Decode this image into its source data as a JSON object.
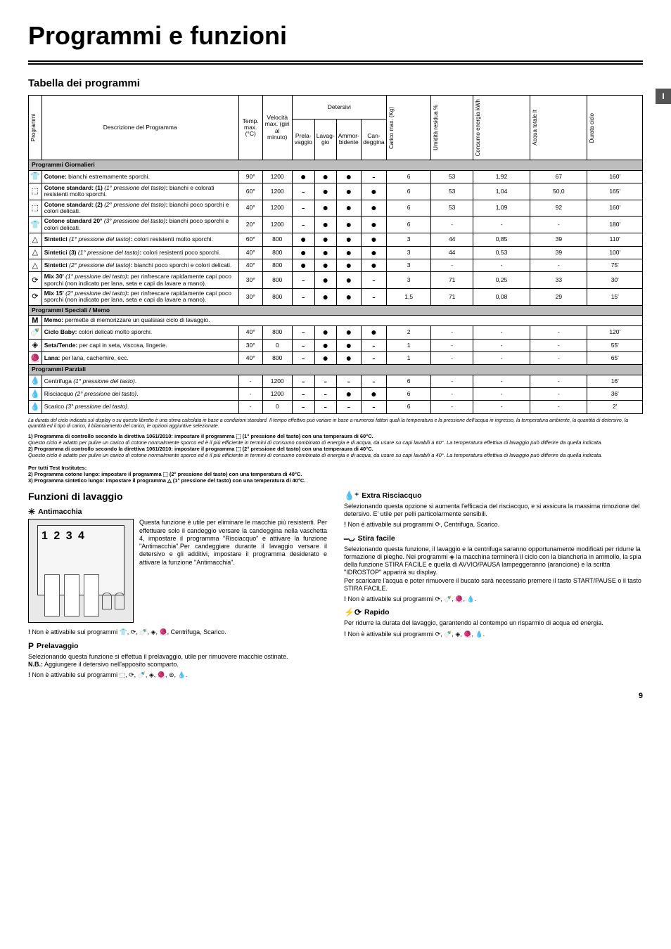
{
  "page": {
    "title": "Programmi e funzioni",
    "number": "9",
    "lang_tab": "I"
  },
  "table": {
    "heading": "Tabella dei programmi",
    "headers": {
      "programmi": "Programmi",
      "descrizione": "Descrizione del Programma",
      "temp": "Temp. max. (°C)",
      "velocita": "Velocità max. (giri al minuto)",
      "detersivi": "Detersivi",
      "prelavaggio": "Prela-vaggio",
      "lavaggio": "Lavag-gio",
      "ammorbidente": "Ammor-bidente",
      "candeggina": "Can-deggina",
      "carico": "Carico max. (Kg)",
      "umidita": "Umidità residua %",
      "consumo": "Consumo energia kWh",
      "acqua": "Acqua totale lt",
      "durata": "Durata ciclo"
    },
    "sections": {
      "giornalieri": "Programmi Giornalieri",
      "speciali": "Programmi Speciali / Memo",
      "parziali": "Programmi Parziali"
    },
    "rows": [
      {
        "icon": "👕",
        "desc": "<b>Cotone:</b> bianchi estremamente sporchi.",
        "temp": "90°",
        "vel": "1200",
        "pre": "●",
        "lav": "●",
        "amm": "●",
        "can": "-",
        "car": "6",
        "umi": "53",
        "con": "1,92",
        "acq": "67",
        "dur": "160'"
      },
      {
        "icon": "⬚",
        "desc": "<b>Cotone standard: (1)</b> <i>(1° pressione del tasto)</i><b>:</b> bianchi e colorati resistenti molto sporchi.",
        "temp": "60°",
        "vel": "1200",
        "pre": "-",
        "lav": "●",
        "amm": "●",
        "can": "●",
        "car": "6",
        "umi": "53",
        "con": "1,04",
        "acq": "50,0",
        "dur": "165'"
      },
      {
        "icon": "⬚",
        "desc": "<b>Cotone standard: (2)</b> <i>(2° pressione del tasto)</i><b>:</b> bianchi poco sporchi e colori delicati.",
        "temp": "40°",
        "vel": "1200",
        "pre": "-",
        "lav": "●",
        "amm": "●",
        "can": "●",
        "car": "6",
        "umi": "53",
        "con": "1,09",
        "acq": "92",
        "dur": "160'"
      },
      {
        "icon": "👕",
        "desc": "<b>Cotone standard 20°</b> <i>(3° pressione del tasto)</i><b>:</b> bianchi poco sporchi e colori delicati.",
        "temp": "20°",
        "vel": "1200",
        "pre": "-",
        "lav": "●",
        "amm": "●",
        "can": "●",
        "car": "6",
        "umi": "-",
        "con": "-",
        "acq": "-",
        "dur": "180'"
      },
      {
        "icon": "△",
        "desc": "<b>Sintetici</b> <i>(1° pressione del tasto)</i><b>:</b> colori resistenti molto sporchi.",
        "temp": "60°",
        "vel": "800",
        "pre": "●",
        "lav": "●",
        "amm": "●",
        "can": "●",
        "car": "3",
        "umi": "44",
        "con": "0,85",
        "acq": "39",
        "dur": "110'"
      },
      {
        "icon": "△",
        "desc": "<b>Sintetici (3)</b> <i>(1° pressione del tasto)</i><b>:</b> colori resistenti poco sporchi.",
        "temp": "40°",
        "vel": "800",
        "pre": "●",
        "lav": "●",
        "amm": "●",
        "can": "●",
        "car": "3",
        "umi": "44",
        "con": "0,53",
        "acq": "39",
        "dur": "100'"
      },
      {
        "icon": "△",
        "desc": "<b>Sintetici</b> <i>(2° pressione del tasto)</i><b>:</b> bianchi poco sporchi e colori delicati.",
        "temp": "40°",
        "vel": "800",
        "pre": "●",
        "lav": "●",
        "amm": "●",
        "can": "●",
        "car": "3",
        "umi": "-",
        "con": "-",
        "acq": "-",
        "dur": "75'"
      },
      {
        "icon": "⟳",
        "desc": "<b>Mix 30'</b> <i>(1° pressione del tasto)</i><b>:</b> per rinfrescare rapidamente capi poco sporchi (non indicato per lana, seta e capi da lavare a mano).",
        "temp": "30°",
        "vel": "800",
        "pre": "-",
        "lav": "●",
        "amm": "●",
        "can": "-",
        "car": "3",
        "umi": "71",
        "con": "0,25",
        "acq": "33",
        "dur": "30'"
      },
      {
        "icon": "⟳",
        "desc": "<b>Mix 15'</b> <i>(2° pressione del tasto)</i><b>:</b> per rinfrescare rapidamente capi poco sporchi (non indicato per lana, seta e capi da lavare a mano).",
        "temp": "30°",
        "vel": "800",
        "pre": "-",
        "lav": "●",
        "amm": "●",
        "can": "-",
        "car": "1,5",
        "umi": "71",
        "con": "0,08",
        "acq": "29",
        "dur": "15'"
      }
    ],
    "memo": {
      "icon": "M",
      "desc": "<b>Memo:</b> permette di memorizzare un qualsiasi ciclo di lavaggio."
    },
    "speciali_rows": [
      {
        "icon": "🍼",
        "desc": "<b>Ciclo Baby:</b> colori delicati molto sporchi.",
        "temp": "40°",
        "vel": "800",
        "pre": "-",
        "lav": "●",
        "amm": "●",
        "can": "●",
        "car": "2",
        "umi": "-",
        "con": "-",
        "acq": "-",
        "dur": "120'"
      },
      {
        "icon": "◈",
        "desc": "<b>Seta/Tende:</b> per capi in seta, viscosa, lingerie.",
        "temp": "30°",
        "vel": "0",
        "pre": "-",
        "lav": "●",
        "amm": "●",
        "can": "-",
        "car": "1",
        "umi": "-",
        "con": "-",
        "acq": "-",
        "dur": "55'"
      },
      {
        "icon": "🧶",
        "desc": "<b>Lana:</b> per lana, cachemire, ecc.",
        "temp": "40°",
        "vel": "800",
        "pre": "-",
        "lav": "●",
        "amm": "●",
        "can": "-",
        "car": "1",
        "umi": "-",
        "con": "-",
        "acq": "-",
        "dur": "65'"
      }
    ],
    "parziali_rows": [
      {
        "icon": "💧",
        "desc": "Centrifuga <i>(1° pressione del tasto)</i>.",
        "temp": "-",
        "vel": "1200",
        "pre": "-",
        "lav": "-",
        "amm": "-",
        "can": "-",
        "car": "6",
        "umi": "-",
        "con": "-",
        "acq": "-",
        "dur": "16'"
      },
      {
        "icon": "💧",
        "desc": "Risciacquo <i>(2° pressione del tasto)</i>.",
        "temp": "-",
        "vel": "1200",
        "pre": "-",
        "lav": "-",
        "amm": "●",
        "can": "●",
        "car": "6",
        "umi": "-",
        "con": "-",
        "acq": "-",
        "dur": "36'"
      },
      {
        "icon": "💧",
        "desc": "Scarico <i>(3° pressione del tasto)</i>.",
        "temp": "-",
        "vel": "0",
        "pre": "-",
        "lav": "-",
        "amm": "-",
        "can": "-",
        "car": "6",
        "umi": "-",
        "con": "-",
        "acq": "-",
        "dur": "2'"
      }
    ],
    "footnote": "La durata del ciclo indicata sul display o su questo libretto è una stima calcolata in base a condizioni standard. Il tempo effettivo può variare in base a numerosi fattori quali la temperatura e la pressione dell'acqua in ingresso, la temperatura ambiente, la quantità di detersivo, la quantità ed il tipo di carico, il bilanciamento del carico, le opzioni aggiuntive selezionate.",
    "notes": "1) Programma di controllo secondo la direttiva 1061/2010: impostare il programma ⬚ (1° pressione del tasto) con una temperaura di 60°C.\nQuesto ciclo è adatto per pulire un carico di cotone normalmente sporco ed è il più efficiente in termini di consumo combinato di energia e di acqua, da usare su capi lavabili a 60°. La temperatura effettiva di lavaggio può differire da quella indicata.\n2) Programma di controllo secondo la direttiva 1061/2010: impostare il programma ⬚ (2° pressione del tasto) con una temperaura di 40°C.\nQuesto ciclo è adatto per pulire un carico di cotone normalmente sporco ed è il più efficiente in termini di consumo combinato di energia e di acqua, da usare su capi lavabili a 40°. La temperatura effettiva di lavaggio può differire da quella indicata.\n\nPer tutti Test Institutes:\n2) Programma cotone lungo: impostare il programma ⬚ (2° pressione del tasto) con una temperatura di 40°C.\n3) Programma sintetico lungo: impostare il programma △ (1° pressione del tasto) con una temperatura di 40°C."
  },
  "functions": {
    "heading": "Funzioni di lavaggio",
    "antimacchia": {
      "title": "Antimacchia",
      "drawer_label": "1 2 3 4",
      "body": "Questa funzione è utile per eliminare le macchie più resistenti. Per effettuare solo il candeggio versare la candeggina nella vaschetta 4, impostare il programma \"Risciacquo\" e attivare la funzione \"Antimacchia\".Per candeggiare durante il lavaggio versare il detersivo e gli additivi, impostare il programma desiderato e attivare la funzione \"Antimacchia\".",
      "warn": "Non è attivabile sui programmi 👕, ⟳, 🍼, ◈, 🧶, Centrifuga, Scarico."
    },
    "prelavaggio": {
      "icon": "P",
      "title": "Prelavaggio",
      "body": "Selezionando questa funzione si effettua il prelavaggio, utile per rimuovere macchie ostinate.",
      "nb_label": "N.B.:",
      "nb": "Aggiungere il detersivo nell'apposito scomparto.",
      "warn": "Non è attivabile sui programmi ⬚, ⟳, 🍼, ◈, 🧶, ⊚, 💧."
    },
    "extra": {
      "title": "Extra Risciacquo",
      "body": "Selezionando questa opzione si aumenta l'efficacia del risciacquo, e si assicura la massima rimozione del detersivo. E' utile per pelli particolarmente sensibili.",
      "warn": "Non è attivabile sui programmi ⟳, Centrifuga, Scarico."
    },
    "stira": {
      "title": "Stira facile",
      "body": "Selezionando questa funzione, il lavaggio e la centrifuga saranno opportunamente modificati per ridurre la formazione di pieghe. Nei programmi ◈ la macchina terminerà il ciclo con la biancheria in ammollo, la spia della funzione STIRA FACILE e quella di AVVIO/PAUSA lampeggeranno (arancione) e la scritta \"IDROSTOP\" apparirà su display.",
      "body2": "Per scaricare l'acqua e poter rimuovere il bucato sarà necessario premere il tasto START/PAUSE o il tasto STIRA FACILE.",
      "warn": "Non è attivabile sui programmi ⟳, 🍼, 🧶, 💧."
    },
    "rapido": {
      "title": "Rapido",
      "body": "Per ridurre la durata del lavaggio, garantendo al contempo un risparmio di acqua ed energia.",
      "warn": "Non è attivabile sui programmi ⟳, 🍼, ◈, 🧶, 💧."
    }
  }
}
